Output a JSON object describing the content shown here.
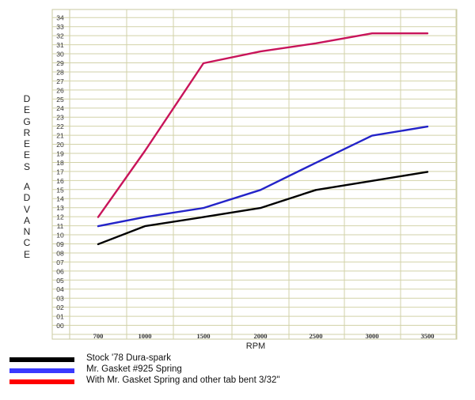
{
  "chart_data": {
    "type": "line",
    "xlabel": "RPM",
    "ylabel_letters_top": "DEGREES",
    "ylabel_letters_bottom": "ADVANCE",
    "categories": [
      "700",
      "1000",
      "1500",
      "2000",
      "2500",
      "3000",
      "3500"
    ],
    "y_ticks": [
      "00",
      "01",
      "02",
      "03",
      "04",
      "05",
      "06",
      "07",
      "08",
      "09",
      "10",
      "11",
      "12",
      "13",
      "14",
      "15",
      "16",
      "17",
      "18",
      "19",
      "20",
      "21",
      "22",
      "23",
      "24",
      "25",
      "26",
      "27",
      "28",
      "29",
      "30",
      "31",
      "32",
      "33",
      "34"
    ],
    "ylim": [
      0,
      34
    ],
    "grid": true,
    "legend_position": "bottom-left",
    "series": [
      {
        "name": "Stock '78 Dura-spark",
        "color": "#000000",
        "legend_color": "#000000",
        "values": [
          9,
          11,
          12,
          13,
          15,
          16,
          17
        ]
      },
      {
        "name": "Mr. Gasket #925 Spring",
        "color": "#2323c8",
        "legend_color": "#3a3aff",
        "values": [
          11,
          12,
          13,
          15,
          18,
          21,
          22
        ]
      },
      {
        "name": "With Mr. Gasket Spring and other tab bent 3/32\"",
        "color": "#c8145a",
        "legend_color": "#ff0000",
        "values": [
          12,
          19.3,
          29,
          30.3,
          31.2,
          32.3,
          32.3
        ]
      }
    ]
  }
}
